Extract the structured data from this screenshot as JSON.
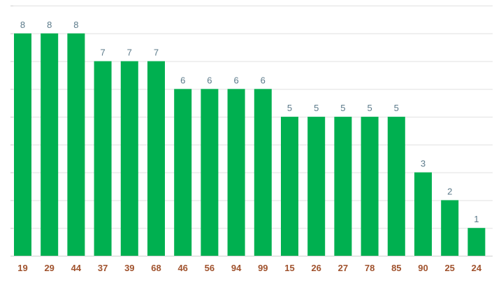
{
  "chart_data": {
    "type": "bar",
    "categories": [
      "19",
      "29",
      "44",
      "37",
      "39",
      "68",
      "46",
      "56",
      "94",
      "99",
      "15",
      "26",
      "27",
      "78",
      "85",
      "90",
      "25",
      "24"
    ],
    "values": [
      8,
      8,
      8,
      7,
      7,
      7,
      6,
      6,
      6,
      6,
      5,
      5,
      5,
      5,
      5,
      3,
      2,
      1
    ],
    "ylim": [
      0,
      9
    ],
    "grid": true,
    "data_labels": true,
    "colors": {
      "bar": "#00b050",
      "data_label": "#5b7a8a",
      "tick_label": "#a0522d",
      "grid": "#e0e0e0"
    }
  }
}
